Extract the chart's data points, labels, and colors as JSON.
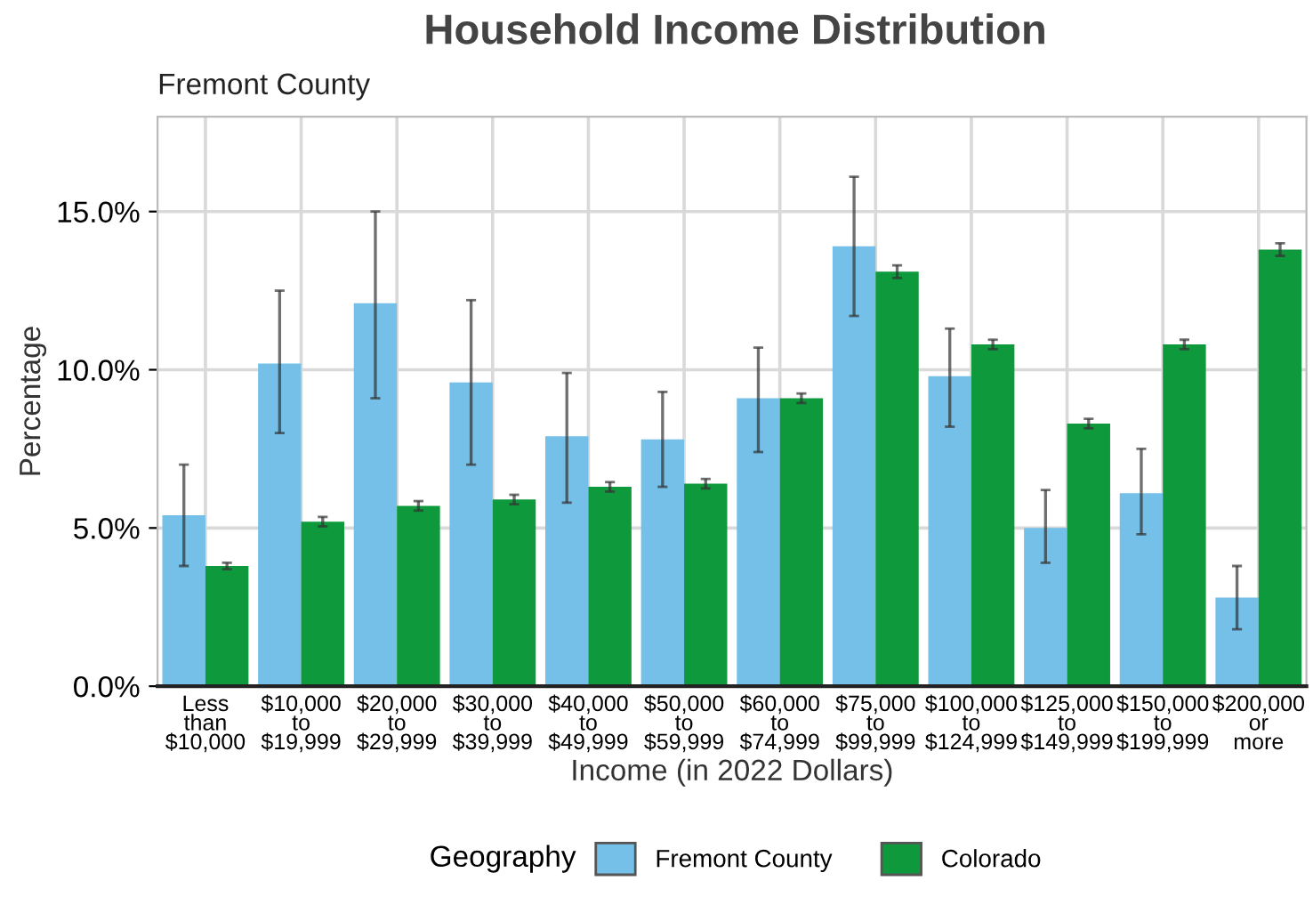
{
  "chart_data": {
    "type": "bar",
    "title": "Household Income Distribution",
    "subtitle": "Fremont County",
    "xlabel": "Income (in 2022 Dollars)",
    "ylabel": "Percentage",
    "legend_title": "Geography",
    "categories": [
      "Less\nthan\n$10,000",
      "$10,000\nto\n$19,999",
      "$20,000\nto\n$29,999",
      "$30,000\nto\n$39,999",
      "$40,000\nto\n$49,999",
      "$50,000\nto\n$59,999",
      "$60,000\nto\n$74,999",
      "$75,000\nto\n$99,999",
      "$100,000\nto\n$124,999",
      "$125,000\nto\n$149,999",
      "$150,000\nto\n$199,999",
      "$200,000\nor\nmore"
    ],
    "series": [
      {
        "name": "Fremont County",
        "color": "#74c0e8",
        "values": [
          5.4,
          10.2,
          12.1,
          9.6,
          7.9,
          7.8,
          9.1,
          13.9,
          9.8,
          5.0,
          6.1,
          2.8
        ],
        "errors": [
          [
            3.8,
            7.0
          ],
          [
            8.0,
            12.5
          ],
          [
            9.1,
            15.0
          ],
          [
            7.0,
            12.2
          ],
          [
            5.8,
            9.9
          ],
          [
            6.3,
            9.3
          ],
          [
            7.4,
            10.7
          ],
          [
            11.7,
            16.1
          ],
          [
            8.2,
            11.3
          ],
          [
            3.9,
            6.2
          ],
          [
            4.8,
            7.5
          ],
          [
            1.8,
            3.8
          ]
        ]
      },
      {
        "name": "Colorado",
        "color": "#0e9a3c",
        "values": [
          3.8,
          5.2,
          5.7,
          5.9,
          6.3,
          6.4,
          9.1,
          13.1,
          10.8,
          8.3,
          10.8,
          13.8
        ],
        "errors": [
          0.1,
          0.15,
          0.15,
          0.15,
          0.15,
          0.15,
          0.15,
          0.2,
          0.15,
          0.15,
          0.15,
          0.2
        ]
      }
    ],
    "ylim": [
      0,
      18
    ],
    "yticks": [
      {
        "value": 0,
        "label": "0.0%"
      },
      {
        "value": 5,
        "label": "5.0%"
      },
      {
        "value": 10,
        "label": "10.0%"
      },
      {
        "value": 15,
        "label": "15.0%"
      }
    ],
    "grid": true,
    "legend": "bottom"
  }
}
